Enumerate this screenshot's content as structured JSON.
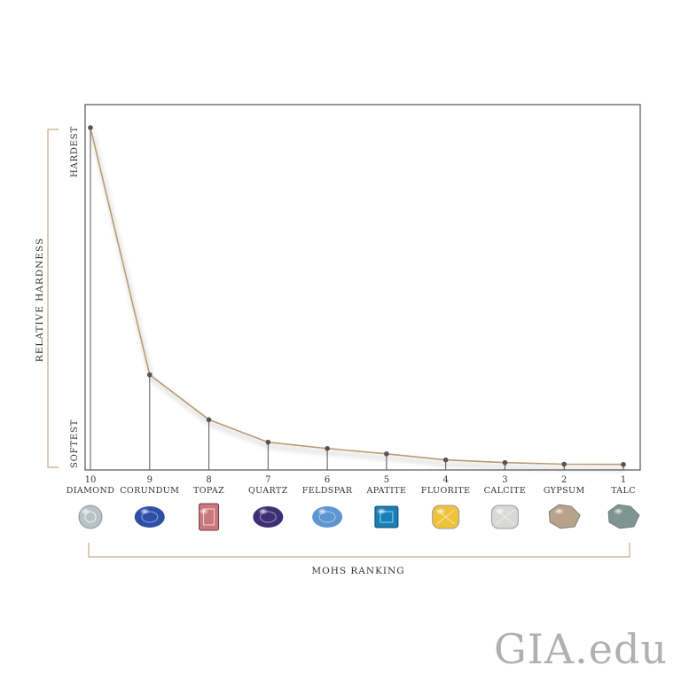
{
  "logo": "GIA.edu",
  "chart_data": {
    "type": "line",
    "ylabel": "RELATIVE HARDNESS",
    "xlabel": "MOHS RANKING",
    "y_top_label": "HARDEST",
    "y_bottom_label": "SOFTEST",
    "x_numbers": [
      "10",
      "9",
      "8",
      "7",
      "6",
      "5",
      "4",
      "3",
      "2",
      "1"
    ],
    "categories": [
      "DIAMOND",
      "CORUNDUM",
      "TOPAZ",
      "QUARTZ",
      "FELDSPAR",
      "APATITE",
      "FLUORITE",
      "CALCITE",
      "GYPSUM",
      "TALC"
    ],
    "values": [
      1500,
      400,
      200,
      100,
      72,
      48,
      21,
      9,
      2,
      1
    ],
    "gem_colors": [
      "#b9c3c7",
      "#2e4fa8",
      "#c9797e",
      "#3d2f73",
      "#5d95d0",
      "#1a7fb6",
      "#f0c23a",
      "#d8d8d6",
      "#b8a28a",
      "#7f9592"
    ],
    "line_color": "#b99a74",
    "grid": false
  }
}
